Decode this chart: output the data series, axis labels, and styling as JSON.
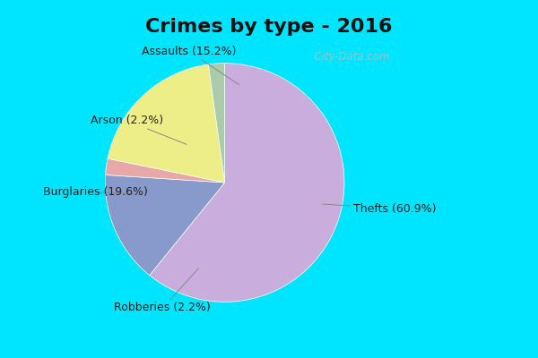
{
  "title": "Crimes by type - 2016",
  "slices": [
    {
      "label": "Thefts (60.9%)",
      "value": 60.9,
      "color": "#C9AEDD"
    },
    {
      "label": "Assaults (15.2%)",
      "value": 15.2,
      "color": "#8899CC"
    },
    {
      "label": "Arson (2.2%)",
      "value": 2.2,
      "color": "#E8A8A8"
    },
    {
      "label": "Burglaries (19.6%)",
      "value": 19.6,
      "color": "#EEEE88"
    },
    {
      "label": "Robberies (2.2%)",
      "value": 2.2,
      "color": "#AACCAA"
    }
  ],
  "background_top_color": "#00E5FF",
  "background_main_color": "#E8F8F0",
  "title_fontsize": 16,
  "label_fontsize": 9,
  "watermark": "  City-Data.com",
  "title_color": "#111111"
}
